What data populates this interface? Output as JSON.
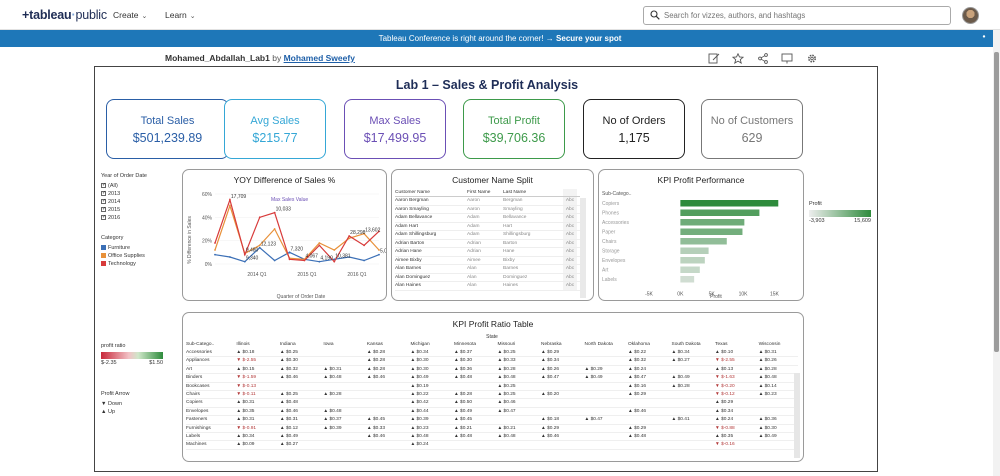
{
  "nav": {
    "logo": "+tableau+public",
    "create": "Create",
    "learn": "Learn",
    "search_placeholder": "Search for vizzes, authors, and hashtags"
  },
  "banner": {
    "text": "Tableau Conference is right around the corner! → ",
    "cta": "Secure your spot"
  },
  "viz": {
    "name": "Mohamed_Abdallah_Lab1",
    "by": "by",
    "author": "Mohamed Sweefy"
  },
  "dashboard": {
    "title": "Lab 1 – Sales & Profit Analysis",
    "kpis": [
      {
        "label": "Total Sales",
        "value": "$501,239.89",
        "color": "#2a5ea6"
      },
      {
        "label": "Avg Sales",
        "value": "$215.77",
        "color": "#35a7d6"
      },
      {
        "label": "Max Sales",
        "value": "$17,499.95",
        "color": "#6b4fb5"
      },
      {
        "label": "Total Profit",
        "value": "$39,706.36",
        "color": "#3d9a4a"
      },
      {
        "label": "No of Orders",
        "value": "1,175",
        "color": "#222222"
      },
      {
        "label": "No of Customers",
        "value": "629",
        "color": "#777777"
      }
    ],
    "year_filter": {
      "title": "Year of Order Date",
      "items": [
        "(All)",
        "2013",
        "2014",
        "2015",
        "2016"
      ]
    },
    "category_legend": {
      "title": "Category",
      "items": [
        {
          "label": "Furniture",
          "color": "#3b6fb6"
        },
        {
          "label": "Office Supplies",
          "color": "#e8913a"
        },
        {
          "label": "Technology",
          "color": "#d83b3b"
        }
      ]
    },
    "profit_ratio_legend": {
      "title": "profit ratio",
      "min": "$-2.35",
      "max": "$1.50"
    },
    "profit_arrow_legend": {
      "title": "Profit Arrow",
      "down": "Down",
      "up": "Up"
    },
    "profit_legend": {
      "title": "Profit",
      "min": "-3,903",
      "max": "15,609"
    },
    "yoy": {
      "title": "YOY Difference of Sales %",
      "ylabel": "% Difference in Sales",
      "xlabel": "Quarter of Order Date",
      "annotation": "Max Sales Value"
    },
    "customer": {
      "title": "Customer Name Split",
      "headers": [
        "Customer Name",
        "First Name",
        "Last Name",
        ""
      ],
      "rows": [
        [
          "Aaron Bergman",
          "Aaron",
          "Bergman",
          "Abc"
        ],
        [
          "Aaron Smayling",
          "Aaron",
          "Smayling",
          "Abc"
        ],
        [
          "Adam Bellavance",
          "Adam",
          "Bellavance",
          "Abc"
        ],
        [
          "Adam Hart",
          "Adam",
          "Hart",
          "Abc"
        ],
        [
          "Adam Shillingsburg",
          "Adam",
          "Shillingsburg",
          "Abc"
        ],
        [
          "Adrian Barton",
          "Adrian",
          "Barton",
          "Abc"
        ],
        [
          "Adrian Hane",
          "Adrian",
          "Hane",
          "Abc"
        ],
        [
          "Aimee Bixby",
          "Aimee",
          "Bixby",
          "Abc"
        ],
        [
          "Alan Barnes",
          "Alan",
          "Barnes",
          "Abc"
        ],
        [
          "Alan Dominguez",
          "Alan",
          "Dominguez",
          "Abc"
        ],
        [
          "Alan Haines",
          "Alan",
          "Haines",
          "Abc"
        ]
      ]
    },
    "kpi_profit": {
      "title": "KPI Profit Performance",
      "row_header": "Sub-Catego..",
      "xlabel": "Profit",
      "ticks": [
        "-5K",
        "0K",
        "5K",
        "10K",
        "15K"
      ]
    },
    "ratio_table": {
      "title": "KPI Profit Ratio Table",
      "state_label": "State",
      "row_header": "Sub-Catego..",
      "states": [
        "Illinois",
        "Indiana",
        "Iowa",
        "Kansas",
        "Michigan",
        "Minnesota",
        "Missouri",
        "Nebraska",
        "North Dakota",
        "Oklahoma",
        "South Dakota",
        "Texas",
        "Wisconsin"
      ],
      "rows": [
        {
          "name": "Accessories",
          "cells": [
            "▲ $0.18",
            "▲ $0.25",
            "",
            "▲ $0.28",
            "▲ $0.34",
            "▲ $0.37",
            "▲ $0.25",
            "▲ $0.29",
            "",
            "▲ $0.22",
            "▲ $0.34",
            "▲ $0.10",
            "▲ $0.31"
          ]
        },
        {
          "name": "Appliances",
          "cells": [
            "▼ $-2.55",
            "▲ $0.30",
            "",
            "▲ $0.28",
            "▲ $0.30",
            "▲ $0.30",
            "▲ $0.33",
            "▲ $0.34",
            "",
            "▲ $0.32",
            "▲ $0.27",
            "▼ $-2.55",
            "▲ $0.26"
          ]
        },
        {
          "name": "Art",
          "cells": [
            "▲ $0.15",
            "▲ $0.32",
            "▲ $0.31",
            "▲ $0.28",
            "▲ $0.30",
            "▲ $0.36",
            "▲ $0.28",
            "▲ $0.26",
            "▲ $0.29",
            "▲ $0.24",
            "",
            "▲ $0.13",
            "▲ $0.28"
          ]
        },
        {
          "name": "Binders",
          "cells": [
            "▼ $-1.59",
            "▲ $0.46",
            "▲ $0.48",
            "▲ $0.46",
            "▲ $0.49",
            "▲ $0.48",
            "▲ $0.48",
            "▲ $0.47",
            "▲ $0.49",
            "▲ $0.47",
            "▲ $0.49",
            "▼ $-1.63",
            "▲ $0.48"
          ]
        },
        {
          "name": "Bookcases",
          "cells": [
            "▼ $-0.13",
            "",
            "",
            "",
            "▲ $0.19",
            "",
            "▲ $0.25",
            "",
            "",
            "▲ $0.16",
            "▲ $0.28",
            "▼ $-0.20",
            "▲ $0.14"
          ]
        },
        {
          "name": "Chairs",
          "cells": [
            "▼ $-0.11",
            "▲ $0.25",
            "▲ $0.28",
            "",
            "▲ $0.22",
            "▲ $0.28",
            "▲ $0.25",
            "▲ $0.20",
            "",
            "▲ $0.29",
            "",
            "▼ $-0.12",
            "▲ $0.23"
          ]
        },
        {
          "name": "Copiers",
          "cells": [
            "▲ $0.31",
            "▲ $0.48",
            "",
            "",
            "▲ $0.42",
            "▲ $0.50",
            "▲ $0.46",
            "",
            "",
            "",
            "",
            "▲ $0.29",
            ""
          ]
        },
        {
          "name": "Envelopes",
          "cells": [
            "▲ $0.35",
            "▲ $0.46",
            "▲ $0.48",
            "",
            "▲ $0.44",
            "▲ $0.49",
            "▲ $0.47",
            "",
            "",
            "▲ $0.46",
            "",
            "▲ $0.34",
            ""
          ]
        },
        {
          "name": "Fasteners",
          "cells": [
            "▲ $0.31",
            "▲ $0.31",
            "▲ $0.37",
            "▲ $0.45",
            "▲ $0.39",
            "▲ $0.45",
            "",
            "▲ $0.18",
            "▲ $0.47",
            "",
            "▲ $0.41",
            "▲ $0.24",
            "▲ $0.36"
          ]
        },
        {
          "name": "Furnishings",
          "cells": [
            "▼ $-0.91",
            "▲ $0.12",
            "▲ $0.39",
            "▲ $0.33",
            "▲ $0.23",
            "▲ $0.21",
            "▲ $0.21",
            "▲ $0.29",
            "",
            "▲ $0.29",
            "",
            "▼ $-0.88",
            "▲ $0.30"
          ]
        },
        {
          "name": "Labels",
          "cells": [
            "▲ $0.34",
            "▲ $0.49",
            "",
            "▲ $0.46",
            "▲ $0.48",
            "▲ $0.48",
            "▲ $0.48",
            "▲ $0.46",
            "",
            "▲ $0.48",
            "",
            "▲ $0.35",
            "▲ $0.49"
          ]
        },
        {
          "name": "Machines",
          "cells": [
            "▲ $0.09",
            "▲ $0.27",
            "",
            "",
            "▲ $0.24",
            "",
            "",
            "",
            "",
            "",
            "",
            "▼ $-0.16",
            ""
          ]
        }
      ]
    }
  },
  "chart_data": [
    {
      "type": "line",
      "title": "YOY Difference of Sales %",
      "xlabel": "Quarter of Order Date",
      "ylabel": "% Difference in Sales",
      "ylim": [
        0,
        60
      ],
      "yticks": [
        "0%",
        "20%",
        "40%",
        "60%"
      ],
      "xticks": [
        "2014 Q1",
        "2015 Q1",
        "2016 Q1"
      ],
      "labels": [
        "17,709",
        "9,480",
        "9,340",
        "12,123",
        "10,033",
        "7,320",
        "4,067",
        "4,190",
        "10,381",
        "28,298",
        "13,602",
        "5,006"
      ],
      "series": [
        {
          "name": "Furniture",
          "color": "#3b6fb6",
          "values": [
            8,
            6,
            2,
            14,
            3,
            10,
            4,
            2,
            4,
            6,
            3,
            8
          ]
        },
        {
          "name": "Office Supplies",
          "color": "#e8913a",
          "values": [
            12,
            50,
            9,
            16,
            30,
            5,
            4,
            18,
            12,
            22,
            26,
            12
          ]
        },
        {
          "name": "Technology",
          "color": "#d83b3b",
          "values": [
            18,
            55,
            8,
            40,
            44,
            4,
            3,
            16,
            2,
            24,
            16,
            28
          ]
        }
      ]
    },
    {
      "type": "bar",
      "title": "KPI Profit Performance",
      "xlabel": "Profit",
      "categories": [
        "Copiers",
        "Phones",
        "Accessories",
        "Paper",
        "Chairs",
        "Storage",
        "Envelopes",
        "Art",
        "Labels"
      ],
      "values": [
        15609,
        12600,
        10200,
        9900,
        7400,
        4500,
        3900,
        3100,
        2200
      ],
      "xlim": [
        -5000,
        17000
      ]
    }
  ]
}
